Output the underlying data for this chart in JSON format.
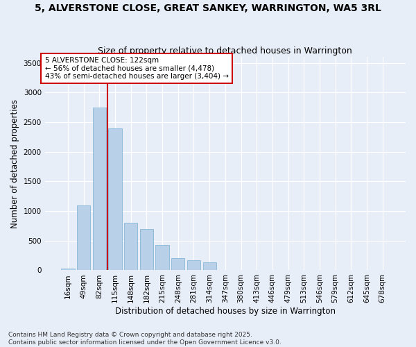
{
  "title1": "5, ALVERSTONE CLOSE, GREAT SANKEY, WARRINGTON, WA5 3RL",
  "title2": "Size of property relative to detached houses in Warrington",
  "xlabel": "Distribution of detached houses by size in Warrington",
  "ylabel": "Number of detached properties",
  "annotation_title": "5 ALVERSTONE CLOSE: 122sqm",
  "annotation_line1": "← 56% of detached houses are smaller (4,478)",
  "annotation_line2": "43% of semi-detached houses are larger (3,404) →",
  "footer1": "Contains HM Land Registry data © Crown copyright and database right 2025.",
  "footer2": "Contains public sector information licensed under the Open Government Licence v3.0.",
  "categories": [
    "16sqm",
    "49sqm",
    "82sqm",
    "115sqm",
    "148sqm",
    "182sqm",
    "215sqm",
    "248sqm",
    "281sqm",
    "314sqm",
    "347sqm",
    "380sqm",
    "413sqm",
    "446sqm",
    "479sqm",
    "513sqm",
    "546sqm",
    "579sqm",
    "612sqm",
    "645sqm",
    "678sqm"
  ],
  "values": [
    30,
    1100,
    2750,
    2400,
    800,
    700,
    430,
    200,
    170,
    130,
    5,
    5,
    0,
    10,
    0,
    0,
    0,
    0,
    0,
    0,
    0
  ],
  "bar_color": "#b8d0e8",
  "bar_edge_color": "#7bafd4",
  "vline_color": "#cc0000",
  "vline_index": 2.5,
  "annotation_box_color": "#ffffff",
  "annotation_box_edge": "#cc0000",
  "ylim": [
    0,
    3600
  ],
  "yticks": [
    0,
    500,
    1000,
    1500,
    2000,
    2500,
    3000,
    3500
  ],
  "bg_color": "#e8eef8",
  "grid_color": "#ffffff",
  "title_fontsize": 10,
  "subtitle_fontsize": 9,
  "axis_fontsize": 8.5,
  "tick_fontsize": 7.5,
  "footer_fontsize": 6.5
}
